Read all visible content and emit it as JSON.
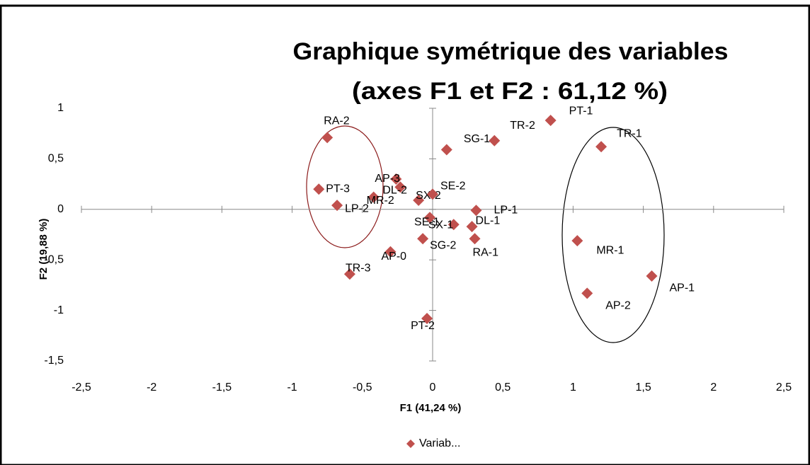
{
  "chart_data": {
    "type": "scatter",
    "title": [
      "Graphique symétrique des variables",
      "(axes F1 et F2 : 61,12 %)"
    ],
    "x_label": "F1 (41,24 %)",
    "y_label": "F2 (19,88 %)",
    "series": [
      {
        "name": "Variab...",
        "color": "#c0504d",
        "labels": [
          "RA-2",
          "PT-3",
          "LP-2",
          "AP-3",
          "DL-2",
          "MR-2",
          "SX-2",
          "SE-2",
          "SG-1",
          "TR-2",
          "PT-1",
          "TR-1",
          "LP-1",
          "DL-1",
          "SX-1",
          "SE-1",
          "RA-1",
          "SG-2",
          "AP-0",
          "TR-3",
          "PT-2",
          "MR-1",
          "AP-1",
          "AP-2"
        ],
        "x": [
          -0.75,
          -0.81,
          -0.68,
          -0.26,
          -0.23,
          -0.42,
          -0.1,
          0.0,
          0.1,
          0.44,
          0.84,
          1.2,
          0.31,
          0.28,
          0.15,
          -0.02,
          0.3,
          -0.07,
          -0.3,
          -0.59,
          -0.04,
          1.03,
          1.56,
          1.1
        ],
        "values": [
          0.71,
          0.2,
          0.04,
          0.3,
          0.22,
          0.12,
          0.09,
          0.15,
          0.59,
          0.68,
          0.88,
          0.62,
          -0.01,
          -0.17,
          -0.15,
          -0.08,
          -0.29,
          -0.29,
          -0.42,
          -0.64,
          -1.08,
          -0.31,
          -0.66,
          -0.83
        ]
      }
    ],
    "xlim": [
      -2.5,
      2.5
    ],
    "xticks": [
      {
        "value": -2.5,
        "label": "-2,5"
      },
      -2,
      {
        "value": -1.5,
        "label": "-1,5"
      },
      -1,
      {
        "value": -0.5,
        "label": "-0,5"
      },
      0,
      {
        "value": 0.5,
        "label": "0,5"
      },
      1,
      {
        "value": 1.5,
        "label": "1,5"
      },
      2,
      {
        "value": 2.5,
        "label": "2,5"
      }
    ],
    "ylim": [
      -1.5,
      1
    ],
    "yticks": [
      {
        "value": -1.5,
        "label": "-1,5"
      },
      -1,
      {
        "value": -0.5,
        "label": "-0,5"
      },
      0,
      {
        "value": 0.5,
        "label": "0,5"
      },
      1
    ],
    "legend": "bottom"
  }
}
